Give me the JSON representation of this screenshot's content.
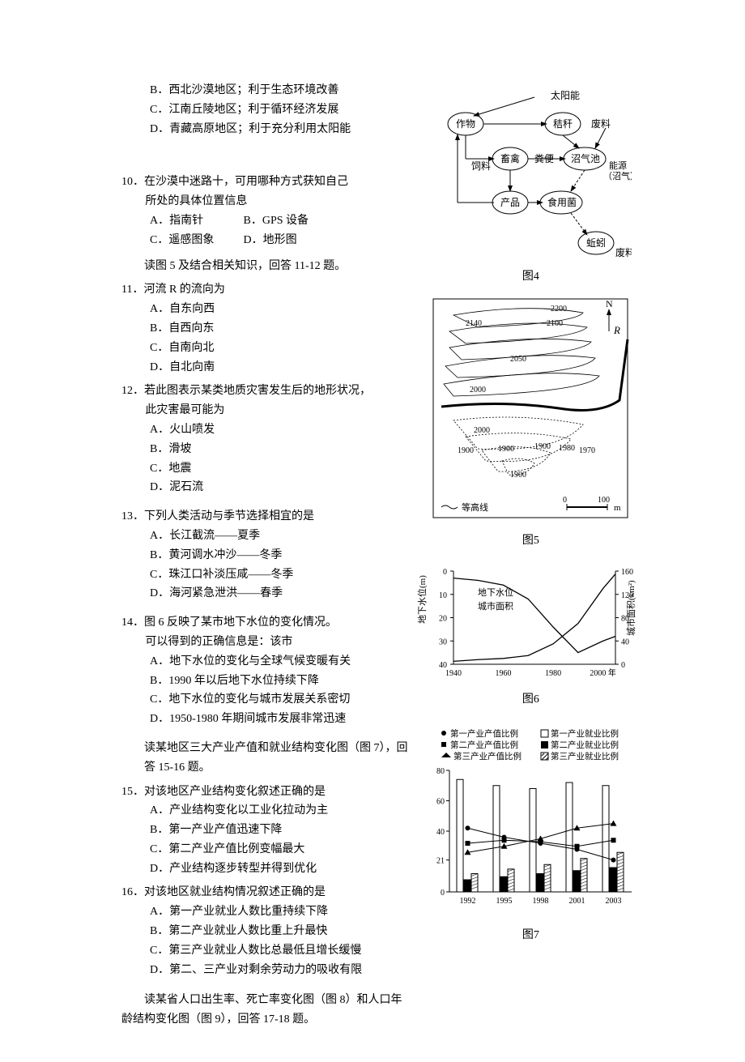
{
  "q9_opts": {
    "B": "B．西北沙漠地区；利于生态环境改善",
    "C": "C．江南丘陵地区；利于循环经济发展",
    "D": "D．青藏高原地区；利于充分利用太阳能"
  },
  "q10": {
    "num": "10．",
    "text": "在沙漠中迷路十，可用哪种方式获知自己所处的具体位置信息",
    "text_line1": "在沙漠中迷路十，可用哪种方式获知自己",
    "text_line2": "所处的具体位置信息",
    "A": "A．指南针",
    "B": "B．GPS 设备",
    "C": "C．遥感图象",
    "D": "D．地形图"
  },
  "passage11": "读图 5 及结合相关知识，回答 11-12 题。",
  "q11": {
    "num": "11．",
    "text": "河流 R 的流向为",
    "A": "A．自东向西",
    "B": "B．自西向东",
    "C": "C．自南向北",
    "D": "D．自北向南"
  },
  "q12": {
    "num": "12．",
    "text": "若此图表示某类地质灾害发生后的地形状况，此灾害最可能为",
    "text_line1": "若此图表示某类地质灾害发生后的地形状况，",
    "text_line2": "此灾害最可能为",
    "A": "A．火山喷发",
    "B": "B．滑坡",
    "C": "C．地震",
    "D": "D．泥石流"
  },
  "q13": {
    "num": "13．",
    "text": "下列人类活动与季节选择相宜的是",
    "A": "A．长江截流——夏季",
    "B": "B．黄河调水冲沙——冬季",
    "C": "C．珠江口补淡压咸——冬季",
    "D": "D．海河紧急泄洪——春季"
  },
  "q14": {
    "num": "14．",
    "text_line1": "图 6 反映了某市地下水位的变化情况。",
    "text_line2": "可以得到的正确信息是：该市",
    "A": "A．地下水位的变化与全球气候变暖有关",
    "B": "B．1990 年以后地下水位持续下降",
    "C": "C．地下水位的变化与城市发展关系密切",
    "D": "D．1950-1980 年期间城市发展非常迅速"
  },
  "passage15": "读某地区三大产业产值和就业结构变化图（图 7），回答 15-16 题。",
  "q15": {
    "num": "15．",
    "text": "对该地区产业结构变化叙述正确的是",
    "A": "A．产业结构变化以工业化拉动为主",
    "B": "B．第一产业产值迅速下降",
    "C": "C．第二产业产值比例变幅最大",
    "D": "D．产业结构逐步转型并得到优化"
  },
  "q16": {
    "num": "16．",
    "text": "对该地区就业结构情况叙述正确的是",
    "A": "A．第一产业就业人数比重持续下降",
    "B": "B．第二产业就业人数比重上升最快",
    "C": "C．第三产业就业人数比总最低且增长缓慢",
    "D": "D．第二、三产业对剩余劳动力的吸收有限"
  },
  "passage17_l1": "读某省人口出生率、死亡率变化图（图 8）和人口年",
  "passage17_l2": "龄结构变化图（图 9），回答 17-18 题。",
  "fig4": {
    "label": "图4",
    "nodes": {
      "sun": "太阳能",
      "crop": "作物",
      "straw": "秸秆",
      "waste1": "废料",
      "livestock": "畜禽",
      "feed": "饲料",
      "dung": "粪便",
      "biogas": "沼气池",
      "energy1": "能源",
      "energy2": "（沼气）",
      "product": "产品",
      "mushroom": "食用菌",
      "worm": "蚯蚓",
      "waste2": "废料"
    }
  },
  "fig5": {
    "label": "图5",
    "contours": [
      "2200",
      "2100",
      "2140",
      "2050",
      "2000",
      "2000",
      "1900",
      "1900",
      "1980",
      "1970",
      "1900"
    ],
    "river": "R",
    "north": "N",
    "legend": "等高线",
    "scale_0": "0",
    "scale_100": "100",
    "scale_unit": "m"
  },
  "fig6": {
    "label": "图6",
    "ylabel_left": "地下水位(m)",
    "ylabel_right": "城市面积(km²)",
    "series1": "地下水位",
    "series2": "城市面积",
    "yleft": [
      "0",
      "10",
      "20",
      "30",
      "40"
    ],
    "yright": [
      "0",
      "40",
      "80",
      "120",
      "160"
    ],
    "xticks": [
      "1940",
      "1960",
      "1980",
      "2000 年"
    ],
    "water_level": [
      [
        1940,
        3
      ],
      [
        1950,
        4
      ],
      [
        1960,
        6
      ],
      [
        1970,
        12
      ],
      [
        1980,
        24
      ],
      [
        1990,
        35
      ],
      [
        2000,
        30
      ],
      [
        2005,
        28
      ]
    ],
    "city_area": [
      [
        1940,
        5
      ],
      [
        1950,
        8
      ],
      [
        1960,
        10
      ],
      [
        1970,
        15
      ],
      [
        1980,
        35
      ],
      [
        1990,
        70
      ],
      [
        2000,
        130
      ],
      [
        2005,
        155
      ]
    ]
  },
  "fig7": {
    "label": "图7",
    "legend": {
      "l1": "第一产业产值比例",
      "l2": "第一产业就业比例",
      "l3": "第二产业产值比例",
      "l4": "第二产业就业比例",
      "l5": "第三产业产值比例",
      "l6": "第三产业就业比例"
    },
    "yticks": [
      "0",
      "21",
      "40",
      "60",
      "80"
    ],
    "xticks": [
      "1992",
      "1995",
      "1998",
      "2001",
      "2003"
    ],
    "val_dot": [
      42,
      36,
      32,
      28,
      21
    ],
    "val_sq": [
      32,
      34,
      33,
      30,
      34
    ],
    "val_tri": [
      26,
      30,
      35,
      42,
      45
    ],
    "emp1": [
      74,
      70,
      68,
      72,
      70
    ],
    "emp2": [
      8,
      10,
      12,
      14,
      16
    ],
    "emp3": [
      12,
      15,
      18,
      22,
      26
    ]
  }
}
